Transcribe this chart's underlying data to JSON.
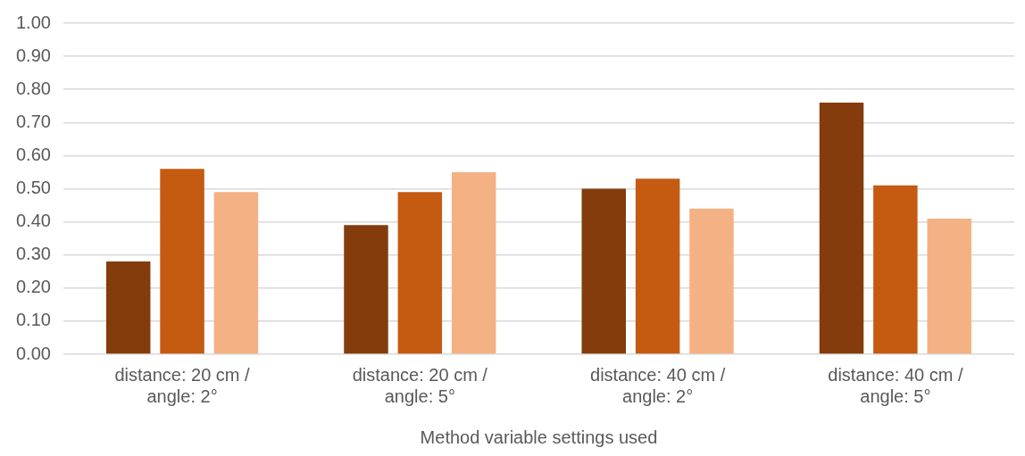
{
  "chart_data": {
    "type": "bar",
    "xlabel": "Method variable settings used",
    "categories": [
      "distance: 20 cm / angle: 2°",
      "distance: 20 cm / angle: 5°",
      "distance: 40 cm / angle: 2°",
      "distance: 40 cm / angle: 5°"
    ],
    "series": [
      {
        "color": "#843c0c",
        "values": [
          0.28,
          0.39,
          0.5,
          0.76
        ]
      },
      {
        "color": "#c55a11",
        "values": [
          0.56,
          0.49,
          0.53,
          0.51
        ]
      },
      {
        "color": "#f4b183",
        "values": [
          0.49,
          0.55,
          0.44,
          0.41
        ]
      }
    ],
    "ylim": [
      0,
      1
    ],
    "yticks": [
      {
        "value": 0,
        "label": "0.00"
      },
      {
        "value": 0.1,
        "label": "0.10"
      },
      {
        "value": 0.2,
        "label": "0.20"
      },
      {
        "value": 0.3,
        "label": "0.30"
      },
      {
        "value": 0.4,
        "label": "0.40"
      },
      {
        "value": 0.5,
        "label": "0.50"
      },
      {
        "value": 0.6,
        "label": "0.60"
      },
      {
        "value": 0.7,
        "label": "0.70"
      },
      {
        "value": 0.8,
        "label": "0.80"
      },
      {
        "value": 0.9,
        "label": "0.90"
      },
      {
        "value": 1,
        "label": "1.00"
      }
    ],
    "grid": "y",
    "legend": false
  }
}
